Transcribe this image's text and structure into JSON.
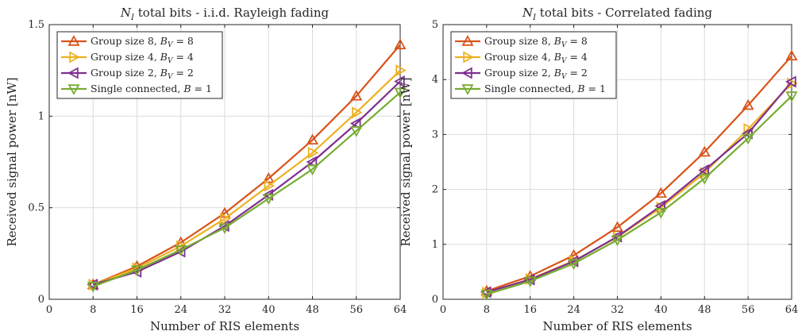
{
  "chart_data": [
    {
      "type": "line",
      "title": "N_I total bits - i.i.d. Rayleigh fading",
      "title_parts": {
        "var": "N",
        "sub": "I",
        "rest": " total bits - i.i.d. Rayleigh fading"
      },
      "xlabel": "Number of RIS elements",
      "ylabel": "Received signal power [nW]",
      "xlim": [
        0,
        64
      ],
      "ylim": [
        0,
        1.5
      ],
      "xticks": [
        0,
        8,
        16,
        24,
        32,
        40,
        48,
        56,
        64
      ],
      "yticks": [
        0,
        0.5,
        1,
        1.5
      ],
      "ytick_labels": [
        "0",
        "0.5",
        "1",
        "1.5"
      ],
      "grid": true,
      "legend_position": "top-left",
      "x": [
        8,
        16,
        24,
        32,
        40,
        48,
        56,
        64
      ],
      "series": [
        {
          "name": "Group size 8, B_V = 8",
          "label": {
            "text": "Group size 8, ",
            "var": "B",
            "sub": "V",
            "eq": " = 8"
          },
          "color": "#D95319",
          "marker": "triangle-up",
          "values": [
            0.08,
            0.18,
            0.31,
            0.47,
            0.66,
            0.87,
            1.11,
            1.39
          ]
        },
        {
          "name": "Group size 4, B_V = 4",
          "label": {
            "text": "Group size 4, ",
            "var": "B",
            "sub": "V",
            "eq": " = 4"
          },
          "color": "#EDB120",
          "marker": "triangle-right",
          "values": [
            0.08,
            0.17,
            0.29,
            0.44,
            0.62,
            0.8,
            1.02,
            1.25
          ]
        },
        {
          "name": "Group size 2, B_V = 2",
          "label": {
            "text": "Group size 2, ",
            "var": "B",
            "sub": "V",
            "eq": " = 2"
          },
          "color": "#7E2F8E",
          "marker": "triangle-left",
          "values": [
            0.08,
            0.15,
            0.26,
            0.4,
            0.57,
            0.75,
            0.96,
            1.19
          ]
        },
        {
          "name": "Single connected, B = 1",
          "label": {
            "text": "Single connected, ",
            "var": "B",
            "sub": "",
            "eq": " = 1"
          },
          "color": "#77AC30",
          "marker": "triangle-down",
          "values": [
            0.07,
            0.16,
            0.27,
            0.39,
            0.55,
            0.71,
            0.92,
            1.13
          ]
        }
      ]
    },
    {
      "type": "line",
      "title": "N_I total bits - Correlated fading",
      "title_parts": {
        "var": "N",
        "sub": "I",
        "rest": " total bits - Correlated fading"
      },
      "xlabel": "Number of RIS elements",
      "ylabel": "Received signal power [nW]",
      "xlim": [
        0,
        64
      ],
      "ylim": [
        0,
        5
      ],
      "xticks": [
        0,
        8,
        16,
        24,
        32,
        40,
        48,
        56,
        64
      ],
      "yticks": [
        0,
        1,
        2,
        3,
        4,
        5
      ],
      "ytick_labels": [
        "0",
        "1",
        "2",
        "3",
        "4",
        "5"
      ],
      "grid": true,
      "legend_position": "top-left",
      "x": [
        8,
        16,
        24,
        32,
        40,
        48,
        56,
        64
      ],
      "series": [
        {
          "name": "Group size 8, B_V = 8",
          "label": {
            "text": "Group size 8, ",
            "var": "B",
            "sub": "V",
            "eq": " = 8"
          },
          "color": "#D95319",
          "marker": "triangle-up",
          "values": [
            0.15,
            0.42,
            0.8,
            1.31,
            1.93,
            2.68,
            3.53,
            4.43
          ]
        },
        {
          "name": "Group size 4, B_V = 4",
          "label": {
            "text": "Group size 4, ",
            "var": "B",
            "sub": "V",
            "eq": " = 4"
          },
          "color": "#EDB120",
          "marker": "triangle-right",
          "values": [
            0.12,
            0.37,
            0.7,
            1.13,
            1.67,
            2.3,
            3.1,
            3.93
          ]
        },
        {
          "name": "Group size 2, B_V = 2",
          "label": {
            "text": "Group size 2, ",
            "var": "B",
            "sub": "V",
            "eq": " = 2"
          },
          "color": "#7E2F8E",
          "marker": "triangle-left",
          "values": [
            0.13,
            0.36,
            0.69,
            1.14,
            1.7,
            2.35,
            3.02,
            3.96
          ]
        },
        {
          "name": "Single connected, B = 1",
          "label": {
            "text": "Single connected, ",
            "var": "B",
            "sub": "",
            "eq": " = 1"
          },
          "color": "#77AC30",
          "marker": "triangle-down",
          "values": [
            0.09,
            0.33,
            0.65,
            1.08,
            1.58,
            2.2,
            2.93,
            3.7
          ]
        }
      ]
    }
  ]
}
